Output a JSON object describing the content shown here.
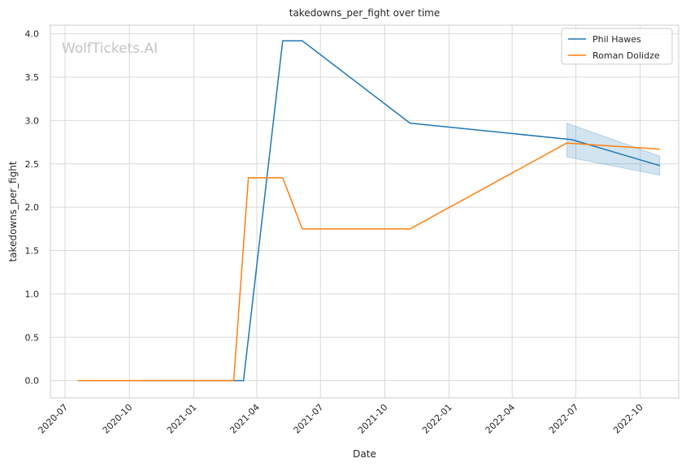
{
  "chart_data": {
    "type": "line",
    "title": "takedowns_per_fight over time",
    "xlabel": "Date",
    "ylabel": "takedowns_per_fight",
    "watermark": "WolfTickets.AI",
    "xlim": [
      "2020-06-10",
      "2022-11-25"
    ],
    "ylim": [
      -0.2,
      4.1
    ],
    "x_ticks": [
      "2020-07-01",
      "2020-10-01",
      "2021-01-01",
      "2021-04-01",
      "2021-07-01",
      "2021-10-01",
      "2022-01-01",
      "2022-04-01",
      "2022-07-01",
      "2022-10-01"
    ],
    "x_tick_labels": [
      "2020-07",
      "2020-10",
      "2021-01",
      "2021-04",
      "2021-07",
      "2021-10",
      "2022-01",
      "2022-04",
      "2022-07",
      "2022-10"
    ],
    "y_ticks": [
      0.0,
      0.5,
      1.0,
      1.5,
      2.0,
      2.5,
      3.0,
      3.5,
      4.0
    ],
    "y_tick_labels": [
      "0.0",
      "0.5",
      "1.0",
      "1.5",
      "2.0",
      "2.5",
      "3.0",
      "3.5",
      "4.0"
    ],
    "grid": true,
    "legend_position": "top-right",
    "series": [
      {
        "name": "Phil Hawes",
        "color": "#1f77b4",
        "x": [
          "2020-10-20",
          "2021-03-13",
          "2021-05-08",
          "2021-06-05",
          "2021-11-06",
          "2022-06-25",
          "2022-10-29"
        ],
        "y": [
          0.0,
          0.0,
          3.92,
          3.92,
          2.97,
          2.78,
          2.48
        ],
        "band": {
          "x": [
            "2022-06-18",
            "2022-10-29"
          ],
          "lower": [
            2.58,
            2.37
          ],
          "upper": [
            2.97,
            2.59
          ]
        }
      },
      {
        "name": "Roman Dolidze",
        "color": "#ff7f0e",
        "x": [
          "2020-07-19",
          "2021-02-27",
          "2021-03-20",
          "2021-05-08",
          "2021-06-05",
          "2021-11-06",
          "2022-06-18",
          "2022-10-29"
        ],
        "y": [
          0.0,
          0.0,
          2.34,
          2.34,
          1.75,
          1.75,
          2.74,
          2.67
        ]
      }
    ]
  }
}
